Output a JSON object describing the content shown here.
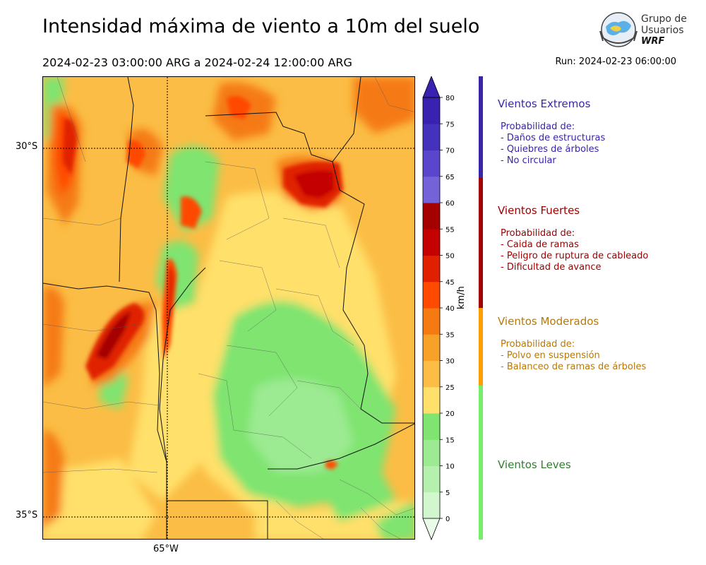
{
  "header": {
    "title": "Intensidad máxima de viento a 10m del suelo",
    "period": "2024-02-23 03:00:00 ARG  a  2024-02-24 12:00:00 ARG",
    "run": "Run: 2024-02-23 06:00:00"
  },
  "logo": {
    "line1": "Grupo de",
    "line2": "Usuarios",
    "line3": "WRF"
  },
  "map": {
    "lat_labels": [
      "30°S",
      "35°S"
    ],
    "lon_labels": [
      "65°W"
    ]
  },
  "colorbar": {
    "unit": "km/h",
    "ticks": [
      "0",
      "5",
      "10",
      "15",
      "20",
      "25",
      "30",
      "35",
      "40",
      "45",
      "50",
      "55",
      "60",
      "65",
      "70",
      "75",
      "80"
    ],
    "colors": [
      "#eafbea",
      "#d2f7cf",
      "#b6f0ae",
      "#9cea92",
      "#7fe470",
      "#ffe06b",
      "#fbbd45",
      "#f7a128",
      "#f57a12",
      "#ff4a00",
      "#e02000",
      "#c40000",
      "#a50000",
      "#7362d8",
      "#5a46cc",
      "#4532bc",
      "#3a22b0"
    ]
  },
  "categories": [
    {
      "title": "Vientos Extremos",
      "color": "#3a24a8",
      "lines": [
        "Probabilidad de:",
        "- Daños de estructuras",
        "- Quiebres de árboles",
        "- No circular"
      ]
    },
    {
      "title": "Vientos Fuertes",
      "color": "#a00000",
      "lines": [
        "Probabilidad de:",
        "- Caida de ramas",
        "- Peligro de ruptura de cableado",
        "- Dificultad de avance"
      ]
    },
    {
      "title": "Vientos Moderados",
      "color": "#b87808",
      "lines": [
        "Probabilidad de:",
        "- Polvo en suspensión",
        "- Balanceo de ramas de árboles"
      ]
    },
    {
      "title": "Vientos Leves",
      "color": "#2f7f2f",
      "lines": []
    }
  ],
  "legend_bar_colors": [
    "#3a24a8",
    "#a00000",
    "#ff9e00",
    "#77ee6b"
  ]
}
